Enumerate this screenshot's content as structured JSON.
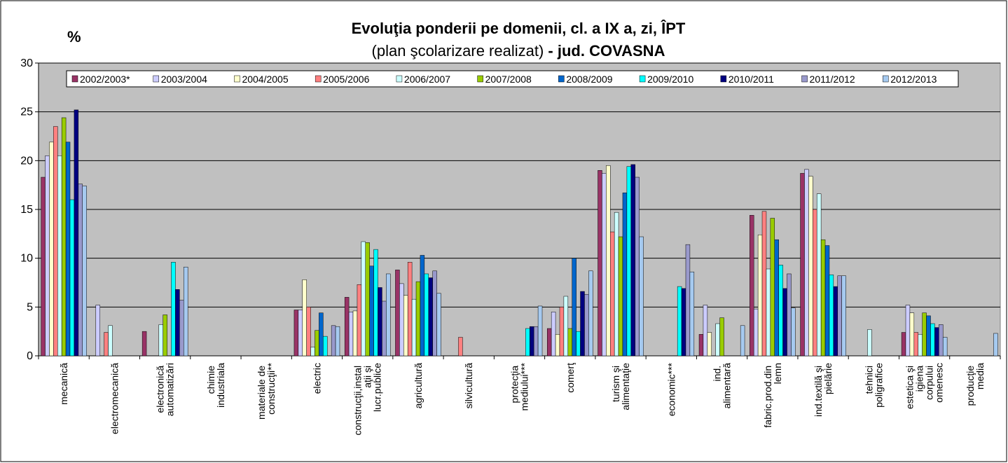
{
  "chart_data": {
    "type": "bar",
    "title": "Evoluţia ponderii pe domenii, cl. a IX a, zi, ÎPT",
    "subtitle": [
      "(plan şcolarizare realizat)",
      "- jud. COVASNA"
    ],
    "y_label": "%",
    "categories": [
      "mecanică",
      "electromecanică",
      "electronică automatizări",
      "chimie industriala",
      "materiale de construcţii**",
      "electric",
      "construcţii,instalaţii şi lucr.publice",
      "agricultură",
      "silvicultură",
      "protecţia mediului***",
      "comerţ",
      "turism şi alimentaţie",
      "economic***",
      "ind. alimentară",
      "fabric.prod.din lemn",
      "ind.textilă şi pielărie",
      "tehnici poligrafice",
      "estetica şi igiena corpului omenesc",
      "producţie media"
    ],
    "series": [
      {
        "name": "2002/2003*",
        "color": "#993366",
        "values": [
          18.3,
          null,
          2.5,
          null,
          null,
          4.7,
          6.0,
          8.8,
          null,
          null,
          2.8,
          19.0,
          null,
          2.2,
          14.4,
          18.7,
          null,
          2.4,
          null
        ]
      },
      {
        "name": "2003/2004",
        "color": "#CCCCFF",
        "values": [
          20.5,
          5.2,
          null,
          null,
          null,
          4.7,
          4.5,
          7.4,
          null,
          null,
          4.5,
          18.7,
          null,
          5.2,
          4.8,
          19.1,
          null,
          5.2,
          null
        ]
      },
      {
        "name": "2004/2005",
        "color": "#FFFFCC",
        "values": [
          21.9,
          null,
          null,
          null,
          null,
          7.8,
          4.6,
          6.2,
          null,
          null,
          2.2,
          19.5,
          null,
          2.4,
          12.4,
          18.4,
          null,
          4.4,
          null
        ]
      },
      {
        "name": "2005/2006",
        "color": "#FF8080",
        "values": [
          23.5,
          2.4,
          null,
          null,
          null,
          5.0,
          7.3,
          9.6,
          1.9,
          null,
          5.0,
          12.7,
          null,
          null,
          14.8,
          15.0,
          null,
          2.4,
          null
        ]
      },
      {
        "name": "2006/2007",
        "color": "#CCFFFF",
        "values": [
          20.5,
          3.1,
          3.2,
          null,
          null,
          0.9,
          11.7,
          5.8,
          null,
          null,
          6.1,
          14.7,
          null,
          3.3,
          8.9,
          16.6,
          2.7,
          2.2,
          null
        ]
      },
      {
        "name": "2007/2008",
        "color": "#99CC00",
        "values": [
          24.4,
          null,
          4.2,
          null,
          null,
          2.6,
          11.6,
          7.6,
          null,
          null,
          2.8,
          12.2,
          null,
          3.9,
          14.1,
          11.9,
          null,
          4.4,
          null
        ]
      },
      {
        "name": "2008/2009",
        "color": "#0066CC",
        "values": [
          21.9,
          null,
          null,
          null,
          null,
          4.4,
          9.2,
          10.3,
          null,
          null,
          10.0,
          16.7,
          null,
          null,
          11.9,
          11.3,
          null,
          4.1,
          null
        ]
      },
      {
        "name": "2009/2010",
        "color": "#00FFFF",
        "values": [
          16.0,
          null,
          9.6,
          null,
          null,
          2.0,
          10.9,
          8.4,
          null,
          2.8,
          2.5,
          19.4,
          7.1,
          null,
          9.3,
          8.3,
          null,
          3.3,
          null
        ]
      },
      {
        "name": "2010/2011",
        "color": "#000080",
        "values": [
          25.2,
          null,
          6.8,
          null,
          null,
          null,
          7.0,
          8.0,
          null,
          3.0,
          6.6,
          19.6,
          6.9,
          null,
          6.9,
          7.1,
          null,
          2.9,
          null
        ]
      },
      {
        "name": "2011/2012",
        "color": "#9999CC",
        "values": [
          17.6,
          null,
          5.7,
          null,
          null,
          3.1,
          5.6,
          8.7,
          null,
          3.0,
          6.3,
          18.3,
          11.4,
          null,
          8.4,
          8.2,
          null,
          3.2,
          null
        ]
      },
      {
        "name": "2012/2013",
        "color": "#A6CAF0",
        "values": [
          17.4,
          null,
          9.1,
          null,
          null,
          3.0,
          8.4,
          6.4,
          null,
          5.1,
          8.7,
          12.2,
          8.6,
          3.1,
          4.9,
          8.2,
          null,
          1.9,
          2.3
        ]
      }
    ],
    "ylim": [
      0,
      30
    ],
    "yticks": [
      0,
      5,
      10,
      15,
      20,
      25,
      30
    ],
    "grid": true
  }
}
